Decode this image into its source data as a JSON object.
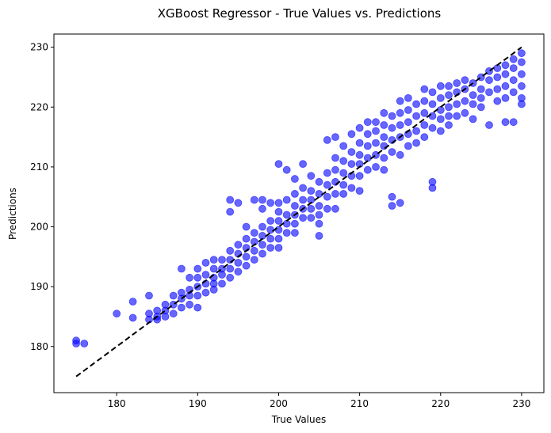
{
  "chart_data": {
    "type": "scatter",
    "title": "XGBoost Regressor - True Values vs. Predictions",
    "xlabel": "True Values",
    "ylabel": "Predictions",
    "xlim": [
      172.25,
      232.75
    ],
    "ylim": [
      172.3,
      232.2
    ],
    "xticks": [
      180,
      190,
      200,
      210,
      220,
      230
    ],
    "yticks": [
      180,
      190,
      200,
      210,
      220,
      230
    ],
    "grid": false,
    "legend": "none",
    "point_color": "#0000ff",
    "point_alpha": 0.6,
    "reference_line": {
      "style": "dashed",
      "color": "#000000",
      "x": [
        175,
        230
      ],
      "y": [
        175,
        230
      ]
    },
    "series": [
      {
        "x": [
          175,
          175,
          176,
          180,
          182,
          182,
          184,
          184,
          184,
          185,
          185,
          185,
          186,
          186,
          186,
          187,
          187,
          187,
          188,
          188,
          188,
          188,
          189,
          189,
          189,
          189,
          190,
          190,
          190,
          190,
          190,
          191,
          191,
          191,
          191,
          192,
          192,
          192,
          192,
          192,
          193,
          193,
          193,
          193,
          194,
          194,
          194,
          194,
          194,
          194,
          195,
          195,
          195,
          195,
          195,
          196,
          196,
          196,
          196,
          196,
          197,
          197,
          197,
          197,
          197,
          198,
          198,
          198,
          198,
          198,
          198,
          199,
          199,
          199,
          199,
          199,
          200,
          200,
          200,
          200,
          200,
          200,
          200,
          201,
          201,
          201,
          201,
          201,
          202,
          202,
          202,
          202,
          202,
          202,
          203,
          203,
          203,
          203,
          203,
          204,
          204,
          204,
          204,
          204,
          205,
          205,
          205,
          205,
          205,
          205,
          206,
          206,
          206,
          206,
          206,
          207,
          207,
          207,
          207,
          207,
          207,
          208,
          208,
          208,
          208,
          208,
          209,
          209,
          209,
          209,
          209,
          210,
          210,
          210,
          210,
          210,
          210,
          211,
          211,
          211,
          211,
          211,
          212,
          212,
          212,
          212,
          212,
          213,
          213,
          213,
          213,
          213,
          213,
          214,
          214,
          214,
          214,
          214,
          214,
          215,
          215,
          215,
          215,
          215,
          215,
          216,
          216,
          216,
          216,
          216,
          217,
          217,
          217,
          217,
          218,
          218,
          218,
          218,
          218,
          219,
          219,
          219,
          219,
          219,
          219,
          220,
          220,
          220,
          220,
          220,
          221,
          221,
          221,
          221,
          221,
          222,
          222,
          222,
          222,
          223,
          223,
          223,
          223,
          224,
          224,
          224,
          224,
          225,
          225,
          225,
          225,
          226,
          226,
          226,
          226,
          227,
          227,
          227,
          227,
          228,
          228,
          228,
          228,
          228,
          229,
          229,
          229,
          229,
          229,
          230,
          230,
          230,
          230,
          230,
          230
        ],
        "y": [
          181,
          180.5,
          180.5,
          185.5,
          187.5,
          184.8,
          188.5,
          185.5,
          184.5,
          186,
          185,
          184.5,
          187,
          186,
          185,
          188.5,
          187,
          185.5,
          193,
          189,
          188,
          186.5,
          191.5,
          189.5,
          188.5,
          187,
          193,
          191.5,
          190,
          188.5,
          186.5,
          194,
          192,
          190.5,
          189,
          194.5,
          193,
          191.5,
          190.5,
          189.5,
          194.5,
          193,
          192,
          190.5,
          204.5,
          202.5,
          196,
          194.5,
          193,
          191.5,
          204,
          197,
          195.5,
          194,
          192.5,
          200,
          198,
          196.5,
          195,
          193.5,
          204.5,
          199,
          197.5,
          196,
          194.5,
          204.5,
          203,
          200,
          198.5,
          197,
          195.5,
          204,
          201,
          199.5,
          198,
          196.5,
          210.5,
          204,
          202.5,
          201,
          199.5,
          198,
          196.5,
          209.5,
          204.5,
          202,
          200.5,
          199,
          208,
          205.5,
          203.5,
          202,
          200.5,
          199,
          210.5,
          206.5,
          204.5,
          203,
          201.5,
          208.5,
          206,
          204.5,
          203,
          201.5,
          207.5,
          205.5,
          203.5,
          202,
          200.5,
          198.5,
          214.5,
          209,
          207,
          205,
          203,
          215,
          211.5,
          209.5,
          207.5,
          205.5,
          203,
          213.5,
          211,
          209,
          207,
          205.5,
          215.5,
          212.5,
          210.5,
          208.5,
          206.5,
          216.5,
          214,
          212,
          210.5,
          208.5,
          206,
          217.5,
          215.5,
          213.5,
          211.5,
          209.5,
          217.5,
          216,
          214,
          212,
          210,
          219,
          217,
          215,
          213.5,
          211.5,
          209.5,
          218.5,
          216.5,
          214.5,
          212.5,
          205,
          203.5,
          221,
          219,
          217,
          215,
          212,
          204,
          221.5,
          219.5,
          217.5,
          215.5,
          213.5,
          220.5,
          218.5,
          216,
          214,
          223,
          221,
          219,
          217,
          215,
          222.5,
          220.5,
          218.5,
          216.5,
          207.5,
          206.5,
          223.5,
          221.5,
          219.5,
          218,
          216,
          223.5,
          222,
          220,
          218.5,
          217,
          224,
          222.5,
          220.5,
          218.5,
          224.5,
          223,
          221,
          219,
          224,
          222,
          220.5,
          218,
          225,
          223,
          221.5,
          220,
          226,
          224.5,
          222.5,
          217,
          226.5,
          225,
          223,
          221,
          227,
          225.5,
          223.5,
          221.5,
          217.5,
          228,
          226.5,
          224.5,
          222.5,
          217.5,
          229,
          227.5,
          225.5,
          223.5,
          221.5,
          220.5
        ]
      }
    ]
  }
}
